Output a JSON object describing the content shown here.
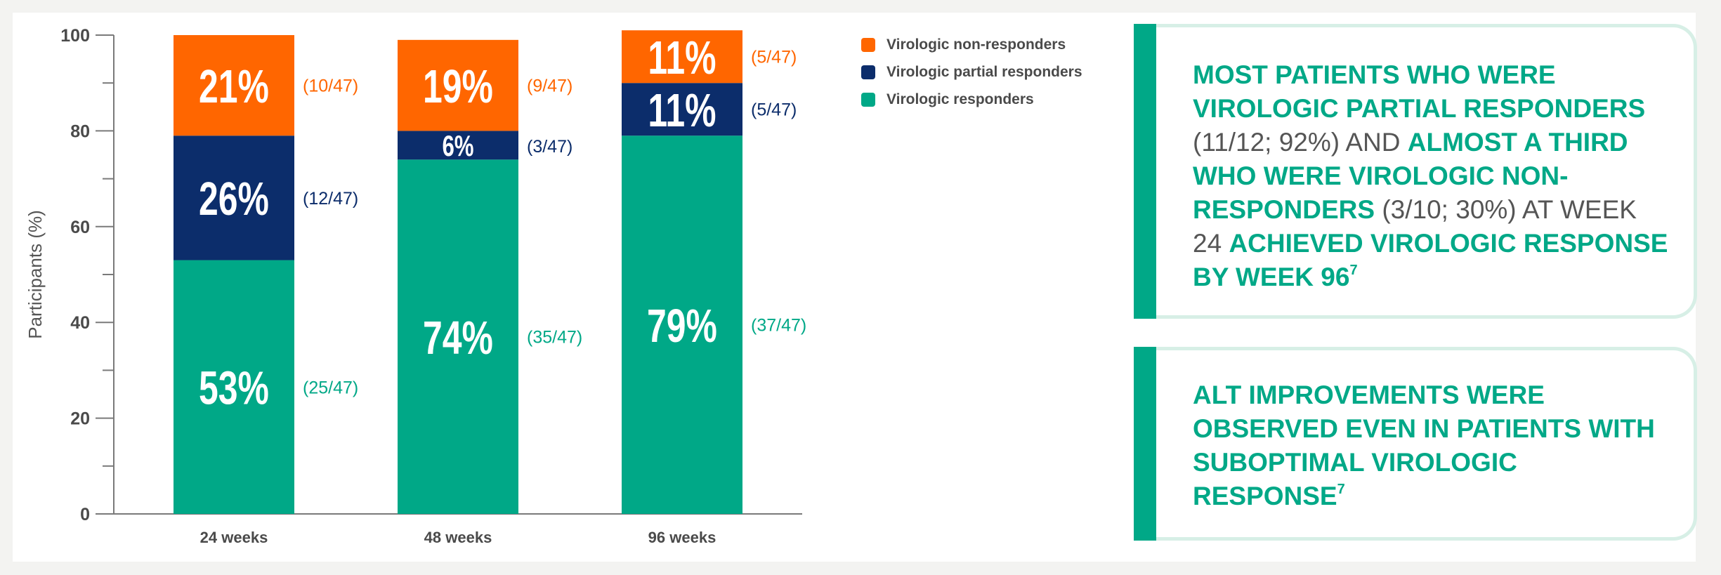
{
  "chart_data": {
    "type": "bar",
    "stacked": true,
    "categories": [
      "24 weeks",
      "48 weeks",
      "96 weeks"
    ],
    "ylabel": "Participants (%)",
    "ylim": [
      0,
      100
    ],
    "yticks": [
      0,
      20,
      40,
      60,
      80,
      100
    ],
    "series": [
      {
        "name": "Virologic responders",
        "color": "#00a887",
        "values": [
          53,
          74,
          79
        ],
        "labels": [
          "53%",
          "74%",
          "79%"
        ],
        "counts": [
          "(25/47)",
          "(35/47)",
          "(37/47)"
        ]
      },
      {
        "name": "Virologic partial responders",
        "color": "#0c2d6b",
        "values": [
          26,
          6,
          11
        ],
        "labels": [
          "26%",
          "6%",
          "11%"
        ],
        "counts": [
          "(12/47)",
          "(3/47)",
          "(5/47)"
        ]
      },
      {
        "name": "Virologic non-responders",
        "color": "#ff6600",
        "values": [
          21,
          19,
          11
        ],
        "labels": [
          "21%",
          "19%",
          "11%"
        ],
        "counts": [
          "(10/47)",
          "(9/47)",
          "(5/47)"
        ]
      }
    ],
    "legend": {
      "position": "right",
      "items": [
        "Virologic non-responders",
        "Virologic partial responders",
        "Virologic responders"
      ]
    },
    "grid": false
  },
  "callouts": [
    {
      "segments": [
        {
          "text": "MOST PATIENTS WHO WERE VIROLOGIC PARTIAL RESPONDERS",
          "highlight": true
        },
        {
          "text": " (11/12; 92%) AND ",
          "highlight": false
        },
        {
          "text": "ALMOST A THIRD WHO WERE VIROLOGIC NON-RESPONDERS",
          "highlight": true
        },
        {
          "text": " (3/10; 30%) AT WEEK 24 ",
          "highlight": false
        },
        {
          "text": "ACHIEVED VIROLOGIC RESPONSE BY WEEK 96",
          "highlight": true,
          "sup": "7"
        }
      ]
    },
    {
      "segments": [
        {
          "text": "ALT IMPROVEMENTS WERE OBSERVED EVEN IN PATIENTS WITH SUBOPTIMAL VIROLOGIC RESPONSE",
          "highlight": true,
          "sup": "7"
        }
      ]
    }
  ]
}
